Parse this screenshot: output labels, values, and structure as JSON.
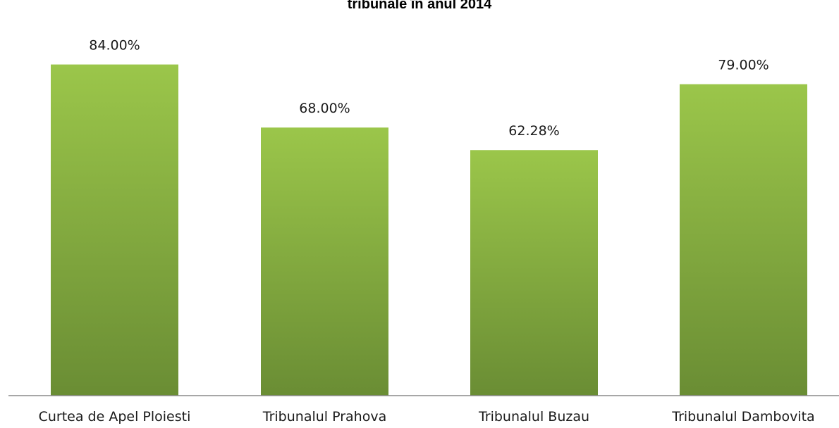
{
  "chart_data": {
    "type": "bar",
    "title": "tribunale în anul 2014",
    "categories": [
      "Curtea de Apel Ploiesti",
      "Tribunalul Prahova",
      "Tribunalul Buzau",
      "Tribunalul Dambovita"
    ],
    "values": [
      84.0,
      68.0,
      62.28,
      79.0
    ],
    "value_labels": [
      "84.00%",
      "68.00%",
      "62.28%",
      "79.00%"
    ],
    "ylim": [
      0,
      100
    ],
    "grid": false,
    "legend": "none",
    "bar_gradient": [
      "#9bc64a",
      "#6a8d34"
    ],
    "axis_color": "#8a8a8a"
  }
}
